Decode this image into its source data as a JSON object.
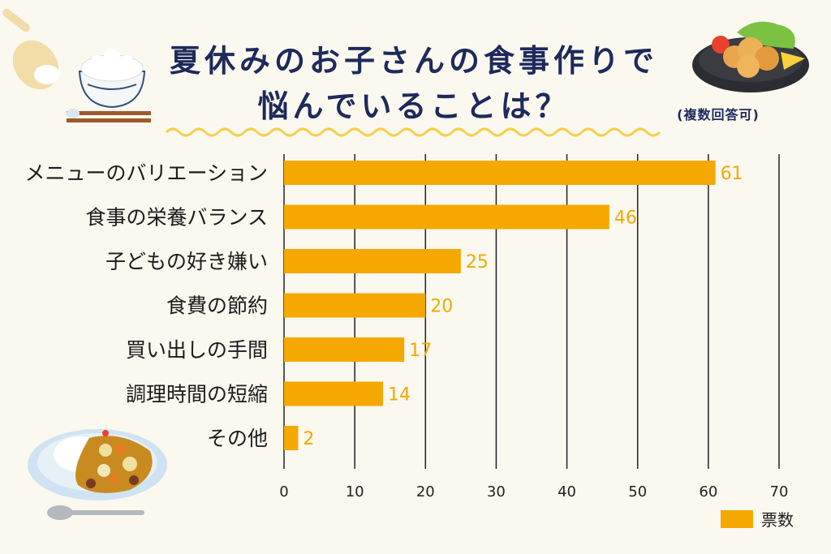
{
  "header": {
    "title_line1": "夏休みのお子さんの食事作りで",
    "title_line2": "悩んでいることは？",
    "note": "(複数回答可)"
  },
  "colors": {
    "bar": "#f5a800",
    "value_label": "#f5a800",
    "title": "#1e2a5c",
    "grid": "#222222",
    "background": "#fbf8ef"
  },
  "chart_data": {
    "type": "bar",
    "orientation": "horizontal",
    "categories": [
      "メニューのバリエーション",
      "食事の栄養バランス",
      "子どもの好き嫌い",
      "食費の節約",
      "買い出しの手間",
      "調理時間の短縮",
      "その他"
    ],
    "series": [
      {
        "name": "票数",
        "values": [
          61,
          46,
          25,
          20,
          17,
          14,
          2
        ]
      }
    ],
    "xlim": [
      0,
      70
    ],
    "xticks": [
      0,
      10,
      20,
      30,
      40,
      50,
      60,
      70
    ],
    "grid": true,
    "legend": "bottom-right"
  }
}
